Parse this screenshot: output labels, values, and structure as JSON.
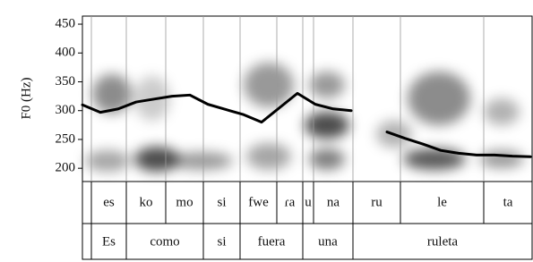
{
  "chart_data": {
    "type": "line",
    "y_label": "F0 (Hz)",
    "ylim": [
      177,
      464
    ],
    "yticks": [
      200,
      250,
      300,
      350,
      400,
      450
    ],
    "categories": [
      null,
      null,
      null,
      null,
      null,
      null,
      null,
      null,
      null,
      null,
      null,
      null,
      null,
      null,
      null,
      null,
      null,
      null,
      null,
      null,
      null,
      null,
      null,
      null,
      null,
      null
    ],
    "series": [
      {
        "color": "#000000",
        "values": [
          310,
          297,
          303,
          315,
          320,
          325,
          327,
          311,
          302,
          293,
          280,
          305,
          330,
          311,
          303,
          300,
          null,
          263,
          252,
          242,
          231,
          226,
          223,
          223,
          221,
          220
        ]
      }
    ],
    "tiers": [
      {
        "labels": [
          "es",
          "ko",
          "mo",
          "si",
          "fwe",
          "ɾa",
          "u",
          "na",
          "ru",
          "le",
          "ta"
        ]
      },
      {
        "labels": [
          "Es",
          "como",
          "si",
          "fuera",
          "una",
          "ruleta"
        ]
      }
    ]
  }
}
